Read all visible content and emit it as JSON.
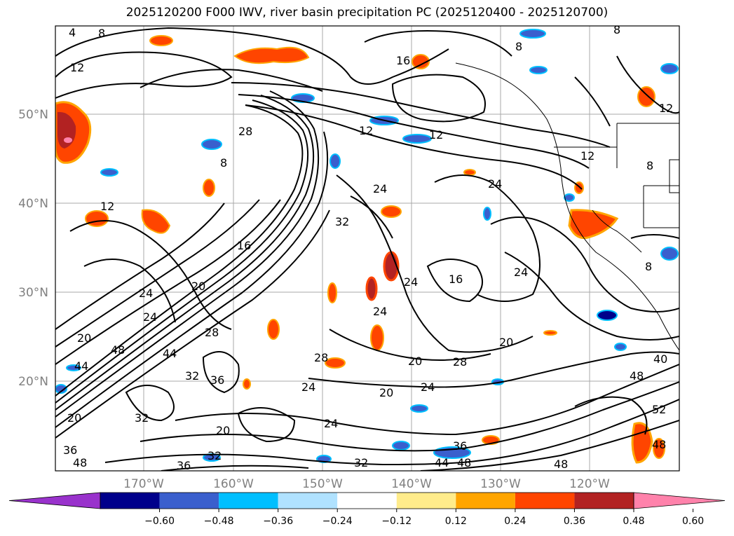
{
  "title": "2025120200 F000 IWV, river basin precipitation PC (2025120400 - 2025120700)",
  "map": {
    "lat_labels": [
      "50°N",
      "40°N",
      "30°N",
      "20°N"
    ],
    "lon_labels": [
      "170°W",
      "160°W",
      "150°W",
      "140°W",
      "130°W",
      "120°W"
    ],
    "contour_labels": [
      "4",
      "8",
      "12",
      "16",
      "20",
      "24",
      "28",
      "32",
      "36",
      "40",
      "44",
      "48",
      "52"
    ]
  },
  "colorbar": {
    "ticks": [
      "−0.60",
      "−0.48",
      "−0.36",
      "−0.24",
      "−0.12",
      "0.12",
      "0.24",
      "0.36",
      "0.48",
      "0.60"
    ],
    "colors": [
      "#9932cc",
      "#00008b",
      "#3a5fcd",
      "#00bfff",
      "#b0e2ff",
      "#ffffff",
      "#ffec8b",
      "#ffa500",
      "#ff4500",
      "#b22222",
      "#ff82ab"
    ]
  }
}
